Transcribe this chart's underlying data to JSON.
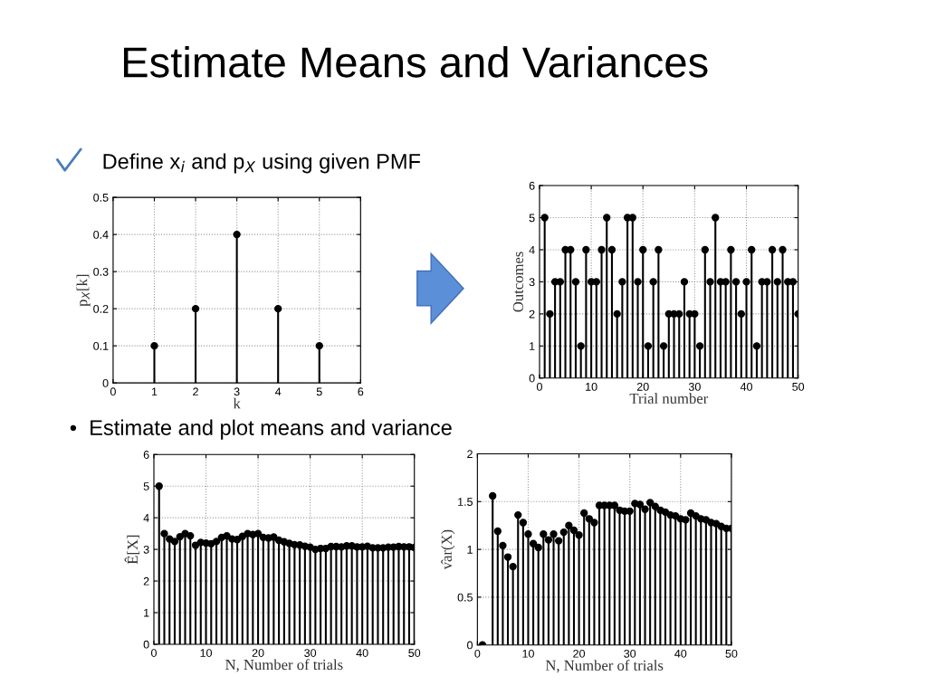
{
  "chart_data": [
    {
      "type": "lollipop",
      "title": "Estimate Means and Variances",
      "annotations": [
        "Define x$_{i}$ and p$_{X}$ using given PMF",
        "•  Estimate and plot means and variance"
      ],
      "xlabel": "k",
      "ylabel": "p$_{X}$[k]",
      "x": [
        1,
        2,
        3,
        4,
        5
      ],
      "series": [
        {
          "color": "#000000",
          "values": [
            0.1,
            0.2,
            0.4,
            0.2,
            0.1
          ]
        }
      ],
      "xlim": [
        0,
        6
      ],
      "xticks": [
        0,
        1,
        2,
        3,
        4,
        5,
        6
      ],
      "ylim": [
        0,
        0.5
      ],
      "yticks": [
        0,
        0.1,
        0.2,
        0.3,
        0.4,
        0.5
      ],
      "grid": true,
      "marker": "circle"
    },
    {
      "type": "lollipop",
      "xlabel": "Trial number",
      "ylabel": "Outcomes",
      "x": [
        1,
        2,
        3,
        4,
        5,
        6,
        7,
        8,
        9,
        10,
        11,
        12,
        13,
        14,
        15,
        16,
        17,
        18,
        19,
        20,
        21,
        22,
        23,
        24,
        25,
        26,
        27,
        28,
        29,
        30,
        31,
        32,
        33,
        34,
        35,
        36,
        37,
        38,
        39,
        40,
        41,
        42,
        43,
        44,
        45,
        46,
        47,
        48,
        49,
        50
      ],
      "series": [
        {
          "color": "#000000",
          "values": [
            5,
            2,
            3,
            3,
            4,
            4,
            3,
            1,
            4,
            3,
            3,
            4,
            5,
            4,
            2,
            3,
            5,
            5,
            3,
            4,
            1,
            3,
            4,
            1,
            2,
            2,
            2,
            3,
            2,
            2,
            1,
            4,
            3,
            5,
            3,
            3,
            4,
            3,
            2,
            3,
            4,
            1,
            3,
            3,
            4,
            3,
            4,
            3,
            3,
            2
          ]
        }
      ],
      "xlim": [
        0,
        50
      ],
      "xticks": [
        0,
        10,
        20,
        30,
        40,
        50
      ],
      "ylim": [
        0,
        6
      ],
      "yticks": [
        0,
        1,
        2,
        3,
        4,
        5,
        6
      ],
      "grid": true,
      "marker": "circle"
    },
    {
      "type": "lollipop",
      "xlabel": "N, Number of trials",
      "ylabel": "Ê[X]",
      "x": [
        1,
        2,
        3,
        4,
        5,
        6,
        7,
        8,
        9,
        10,
        11,
        12,
        13,
        14,
        15,
        16,
        17,
        18,
        19,
        20,
        21,
        22,
        23,
        24,
        25,
        26,
        27,
        28,
        29,
        30,
        31,
        32,
        33,
        34,
        35,
        36,
        37,
        38,
        39,
        40,
        41,
        42,
        43,
        44,
        45,
        46,
        47,
        48,
        49,
        50
      ],
      "series": [
        {
          "color": "#000000",
          "values": [
            5,
            3.5,
            3.33,
            3.25,
            3.4,
            3.5,
            3.43,
            3.13,
            3.22,
            3.2,
            3.18,
            3.25,
            3.38,
            3.43,
            3.33,
            3.31,
            3.41,
            3.5,
            3.47,
            3.5,
            3.38,
            3.36,
            3.39,
            3.29,
            3.24,
            3.19,
            3.15,
            3.14,
            3.1,
            3.07,
            3.0,
            3.03,
            3.03,
            3.09,
            3.09,
            3.08,
            3.11,
            3.11,
            3.08,
            3.08,
            3.1,
            3.05,
            3.05,
            3.05,
            3.07,
            3.07,
            3.09,
            3.08,
            3.08,
            3.06
          ]
        }
      ],
      "xlim": [
        0,
        50
      ],
      "xticks": [
        0,
        10,
        20,
        30,
        40,
        50
      ],
      "ylim": [
        0,
        6
      ],
      "yticks": [
        0,
        1,
        2,
        3,
        4,
        5,
        6
      ],
      "grid": true,
      "marker": "circle"
    },
    {
      "type": "lollipop",
      "xlabel": "N, Number of trials",
      "ylabel": "v̂ar(X)",
      "x": [
        1,
        2,
        3,
        4,
        5,
        6,
        7,
        8,
        9,
        10,
        11,
        12,
        13,
        14,
        15,
        16,
        17,
        18,
        19,
        20,
        21,
        22,
        23,
        24,
        25,
        26,
        27,
        28,
        29,
        30,
        31,
        32,
        33,
        34,
        35,
        36,
        37,
        38,
        39,
        40,
        41,
        42,
        43,
        44,
        45,
        46,
        47,
        48,
        49,
        50
      ],
      "series": [
        {
          "color": "#000000",
          "values": [
            0,
            null,
            1.56,
            1.19,
            1.04,
            0.92,
            0.82,
            1.36,
            1.28,
            1.16,
            1.06,
            1.02,
            1.16,
            1.1,
            1.16,
            1.09,
            1.18,
            1.25,
            1.2,
            1.15,
            1.38,
            1.32,
            1.28,
            1.46,
            1.46,
            1.46,
            1.46,
            1.41,
            1.4,
            1.4,
            1.48,
            1.47,
            1.42,
            1.49,
            1.45,
            1.41,
            1.39,
            1.36,
            1.35,
            1.32,
            1.31,
            1.38,
            1.35,
            1.32,
            1.31,
            1.28,
            1.27,
            1.24,
            1.22,
            1.22
          ]
        }
      ],
      "xlim": [
        0,
        50
      ],
      "xticks": [
        0,
        10,
        20,
        30,
        40,
        50
      ],
      "ylim": [
        0,
        2
      ],
      "yticks": [
        0,
        0.5,
        1,
        1.5,
        2
      ],
      "grid": true,
      "marker": "circle"
    }
  ]
}
